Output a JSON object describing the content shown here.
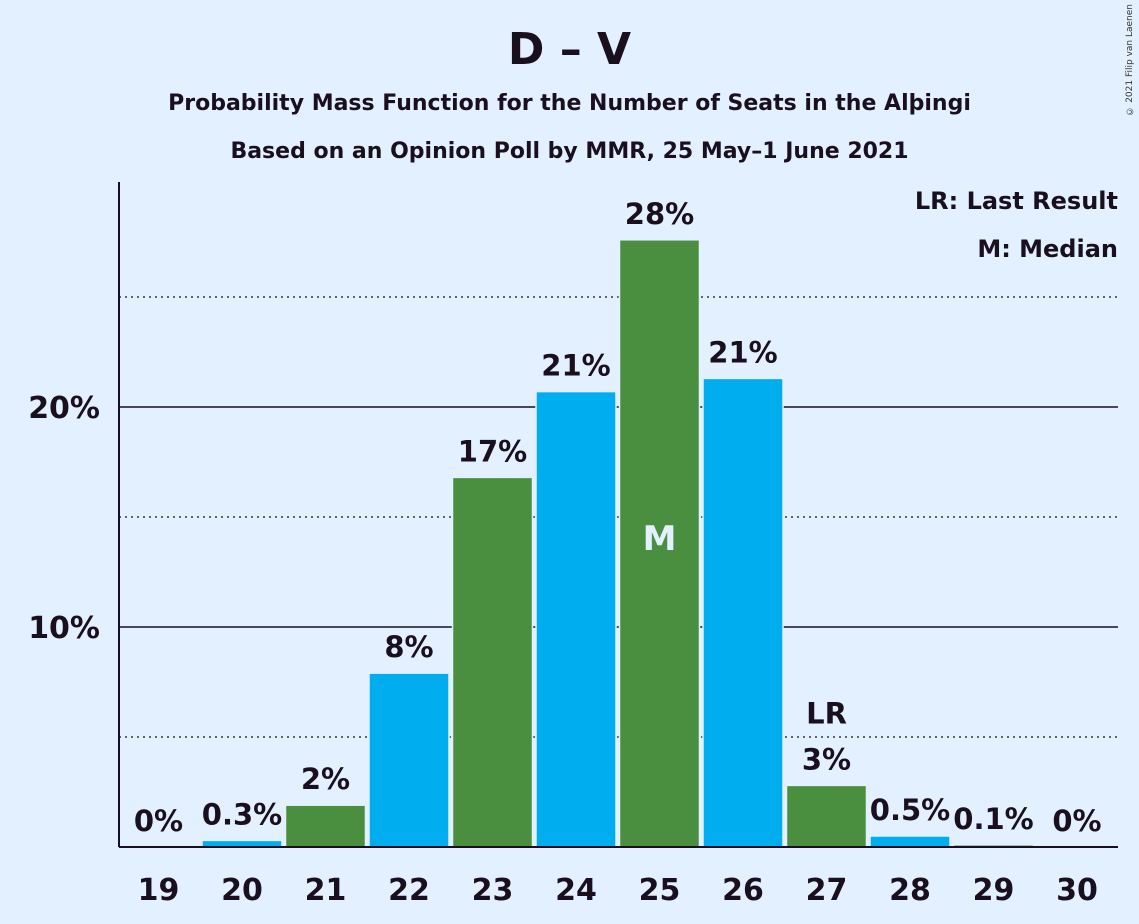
{
  "header": {
    "title": "D – V",
    "subtitle1": "Probability Mass Function for the Number of Seats in the Alþingi",
    "subtitle2": "Based on an Opinion Poll by MMR, 25 May–1 June 2021",
    "copyright": "© 2021 Filip van Laenen"
  },
  "legend": {
    "lr": "LR: Last Result",
    "m": "M: Median"
  },
  "colors": {
    "green": "#4a8f3f",
    "blue": "#00aeef",
    "background": "#e2f0ff"
  },
  "chart_data": {
    "type": "bar",
    "title": "D – V",
    "categories": [
      "19",
      "20",
      "21",
      "22",
      "23",
      "24",
      "25",
      "26",
      "27",
      "28",
      "29",
      "30"
    ],
    "values": [
      0,
      0.3,
      1.9,
      7.9,
      16.8,
      20.7,
      27.6,
      21.3,
      2.8,
      0.5,
      0.1,
      0
    ],
    "value_labels": [
      "0%",
      "0.3%",
      "2%",
      "8%",
      "17%",
      "21%",
      "28%",
      "21%",
      "3%",
      "0.5%",
      "0.1%",
      "0%"
    ],
    "bar_colors": [
      "blue",
      "blue",
      "green",
      "blue",
      "green",
      "blue",
      "green",
      "blue",
      "green",
      "blue",
      "green",
      "blue"
    ],
    "yticks": [
      10,
      20
    ],
    "ytick_labels": [
      "10%",
      "20%"
    ],
    "minor_gridlines": [
      5,
      15,
      25
    ],
    "ylim": [
      0,
      30
    ],
    "median_category": "25",
    "median_marker": "M",
    "last_result_category": "27",
    "last_result_marker": "LR",
    "legend_position": "top-right"
  }
}
